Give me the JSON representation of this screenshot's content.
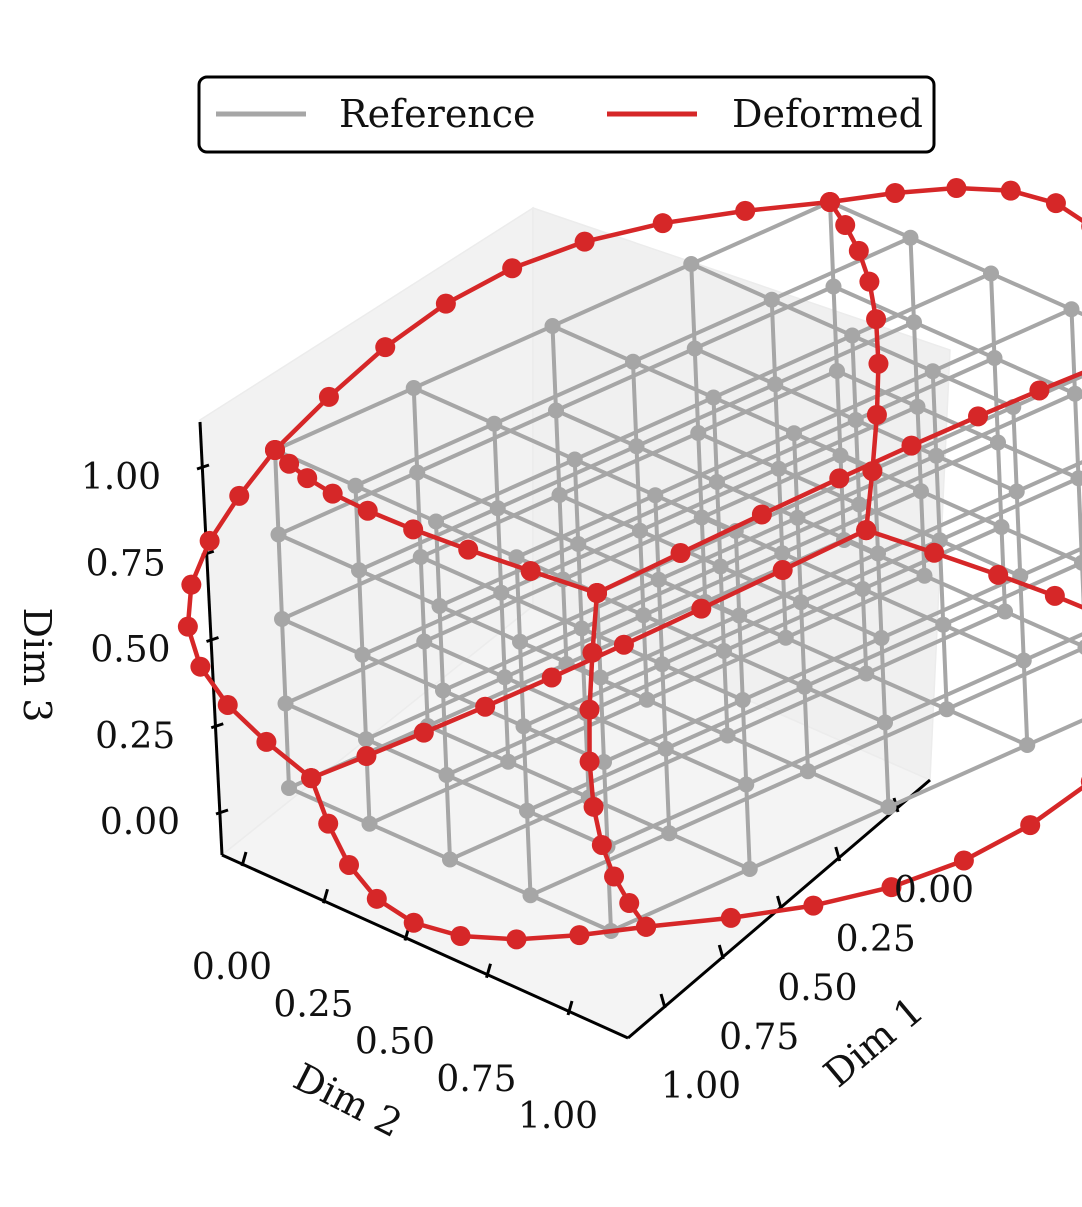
{
  "chart_data": {
    "type": "3d-wireframe",
    "title": "",
    "legend": {
      "placement": "top-center",
      "entries": [
        {
          "name": "Reference",
          "color": "#a6a6a6"
        },
        {
          "name": "Deformed",
          "color": "#d62728"
        }
      ]
    },
    "axes": {
      "x": {
        "label": "Dim 1",
        "range": [
          0,
          1
        ],
        "ticks": [
          "0.00",
          "0.25",
          "0.50",
          "0.75",
          "1.00"
        ]
      },
      "y": {
        "label": "Dim 2",
        "range": [
          0,
          1
        ],
        "ticks": [
          "0.00",
          "0.25",
          "0.50",
          "0.75",
          "1.00"
        ]
      },
      "z": {
        "label": "Dim 3",
        "range": [
          0,
          1
        ],
        "ticks": [
          "0.00",
          "0.25",
          "0.50",
          "0.75",
          "1.00"
        ]
      }
    },
    "series": [
      {
        "name": "Reference",
        "description": "undeformed 5x5x5 lattice on the unit cube",
        "grid_values": [
          0,
          0.25,
          0.5,
          0.75,
          1.0
        ]
      },
      {
        "name": "Deformed",
        "description": "outer edges of the deformed cube (8 segments per edge)",
        "samples_per_edge": 8,
        "corners": [
          {
            "id": "000",
            "x": 0.04,
            "y": 0.0,
            "z": 0.0
          },
          {
            "id": "100",
            "x": 1.04,
            "y": 0.0,
            "z": 0.0
          },
          {
            "id": "010",
            "x": 0.04,
            "y": 1.04,
            "z": 0.0
          },
          {
            "id": "110",
            "x": 1.04,
            "y": 1.04,
            "z": 0.0
          },
          {
            "id": "001",
            "x": 0.0,
            "y": 0.0,
            "z": 1.0
          },
          {
            "id": "101",
            "x": 1.0,
            "y": 0.0,
            "z": 1.0
          },
          {
            "id": "011",
            "x": 0.0,
            "y": 1.0,
            "z": 1.0
          },
          {
            "id": "111",
            "x": 1.0,
            "y": 1.0,
            "z": 1.0
          }
        ],
        "bulge": 0.12
      }
    ]
  }
}
